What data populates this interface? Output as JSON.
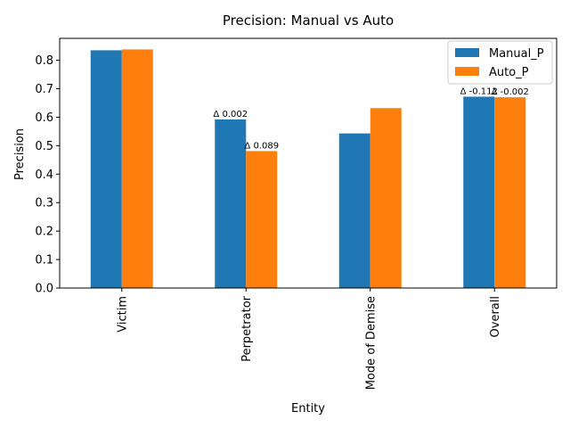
{
  "chart_data": {
    "type": "bar",
    "title": "Precision: Manual vs Auto",
    "xlabel": "Entity",
    "ylabel": "Precision",
    "categories": [
      "Victim",
      "Perpetrator",
      "Mode of Demise",
      "Overall"
    ],
    "series": [
      {
        "name": "Manual_P",
        "values": [
          0.835,
          0.592,
          0.543,
          0.672
        ],
        "color": "#1f77b4"
      },
      {
        "name": "Auto_P",
        "values": [
          0.838,
          0.481,
          0.632,
          0.67
        ],
        "color": "#ff7f0e"
      }
    ],
    "ylim": [
      0,
      0.877
    ],
    "yticks": [
      "0.0",
      "0.1",
      "0.2",
      "0.3",
      "0.4",
      "0.5",
      "0.6",
      "0.7",
      "0.8"
    ],
    "annotations": [
      {
        "text": "Δ 0.002",
        "category": "Perpetrator",
        "series": "Manual_P"
      },
      {
        "text": "Δ 0.089",
        "category": "Perpetrator",
        "series": "Auto_P"
      },
      {
        "text": "Δ -0.112",
        "category": "Overall",
        "series": "Manual_P"
      },
      {
        "text": "Δ -0.002",
        "category": "Overall",
        "series": "Auto_P"
      }
    ],
    "legend": "top-right",
    "grid": false
  }
}
